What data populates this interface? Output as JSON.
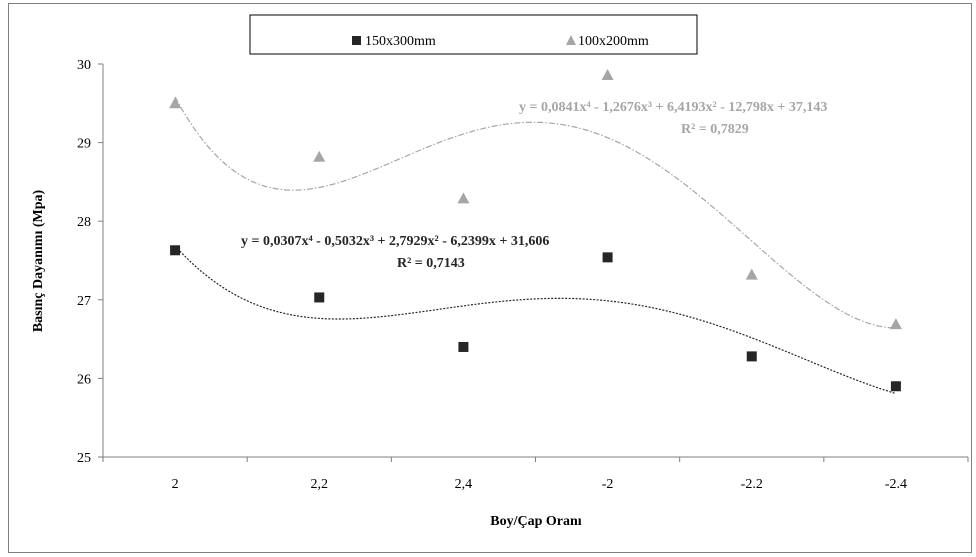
{
  "chart_data": {
    "type": "scatter",
    "categories": [
      "2",
      "2,2",
      "2,4",
      "-2",
      "-2.2",
      "-2.4"
    ],
    "ylabel": "Basınç Dayanımı (Mpa)",
    "xlabel": "Boy/Çap Oranı",
    "ylim": [
      25,
      30
    ],
    "yticks": [
      "25",
      "26",
      "27",
      "28",
      "29",
      "30"
    ],
    "grid": false,
    "legend_position": "top",
    "series": [
      {
        "name": "150x300mm",
        "marker": "square",
        "color": "#262626",
        "values": [
          27.63,
          27.03,
          26.4,
          27.54,
          26.28,
          25.9
        ],
        "trendline": {
          "type": "polynomial",
          "order": 4,
          "coefficients": [
            0.0307,
            -0.5032,
            2.7929,
            -6.2399,
            31.606
          ],
          "equation": "y = 0,0307x⁴ - 0,5032x³ + 2,7929x² - 6,2399x + 31,606",
          "r2": "R² = 0,7143",
          "color": "#262626"
        }
      },
      {
        "name": "100x200mm",
        "marker": "triangle",
        "color": "#a6a6a6",
        "values": [
          29.5,
          28.82,
          28.29,
          29.86,
          27.32,
          26.69
        ],
        "trendline": {
          "type": "polynomial",
          "order": 4,
          "coefficients": [
            0.0841,
            -1.2676,
            6.4193,
            -12.798,
            37.143
          ],
          "equation": "y = 0,0841x⁴ - 1,2676x³ + 6,4193x² - 12,798x + 37,143",
          "r2": "R² = 0,7829",
          "color": "#a6a6a6"
        }
      }
    ]
  }
}
